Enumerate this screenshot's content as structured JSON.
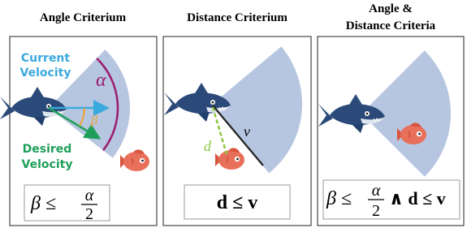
{
  "panels": [
    {
      "title": [
        "Angle Criterium"
      ],
      "annotations": {
        "current_velocity": [
          "Current",
          "Velocity"
        ],
        "desired_velocity": [
          "Desired",
          "Velocity"
        ],
        "alpha": "α",
        "beta": "β"
      },
      "formula": {
        "lhs": "β ≤",
        "num": "α",
        "den": "2"
      }
    },
    {
      "title": [
        "Distance Criterium"
      ],
      "annotations": {
        "d": "d",
        "v": "v"
      },
      "formula": {
        "lhs": "d ≤ v"
      }
    },
    {
      "title": [
        "Angle &",
        "Distance Criteria"
      ],
      "formula": {
        "lhs": "β ≤",
        "num": "α",
        "den": "2",
        "rhs": "∧ d ≤ v"
      }
    }
  ]
}
